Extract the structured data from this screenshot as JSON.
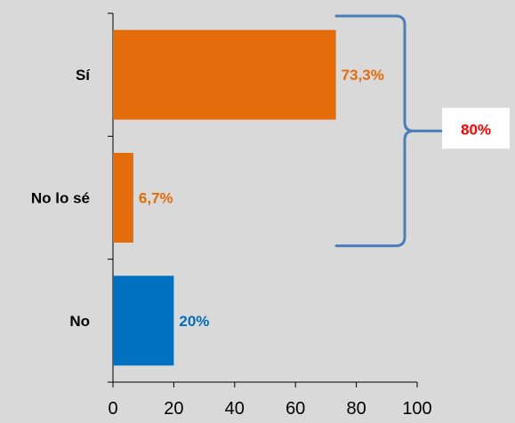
{
  "chart_data": {
    "type": "bar",
    "orientation": "horizontal",
    "categories": [
      "Sí",
      "No lo sé",
      "No"
    ],
    "values": [
      73.3,
      6.7,
      20
    ],
    "data_labels": [
      "73,3%",
      "6,7%",
      "20%"
    ],
    "bar_colors": [
      "#e46c0a",
      "#e46c0a",
      "#0070c0"
    ],
    "label_colors": [
      "#e46c0a",
      "#e46c0a",
      "#0070c0"
    ],
    "xlim": [
      0,
      100
    ],
    "x_ticks": [
      0,
      20,
      40,
      60,
      80,
      100
    ],
    "x_tick_labels": [
      "0",
      "20",
      "40",
      "60",
      "80",
      "100"
    ],
    "grid": false,
    "annotation": {
      "text": "80%",
      "text_color": "#ff0000",
      "box_fill": "#ffffff",
      "brace_color": "#4a7ebb",
      "groups": [
        "Sí",
        "No lo sé"
      ]
    }
  }
}
